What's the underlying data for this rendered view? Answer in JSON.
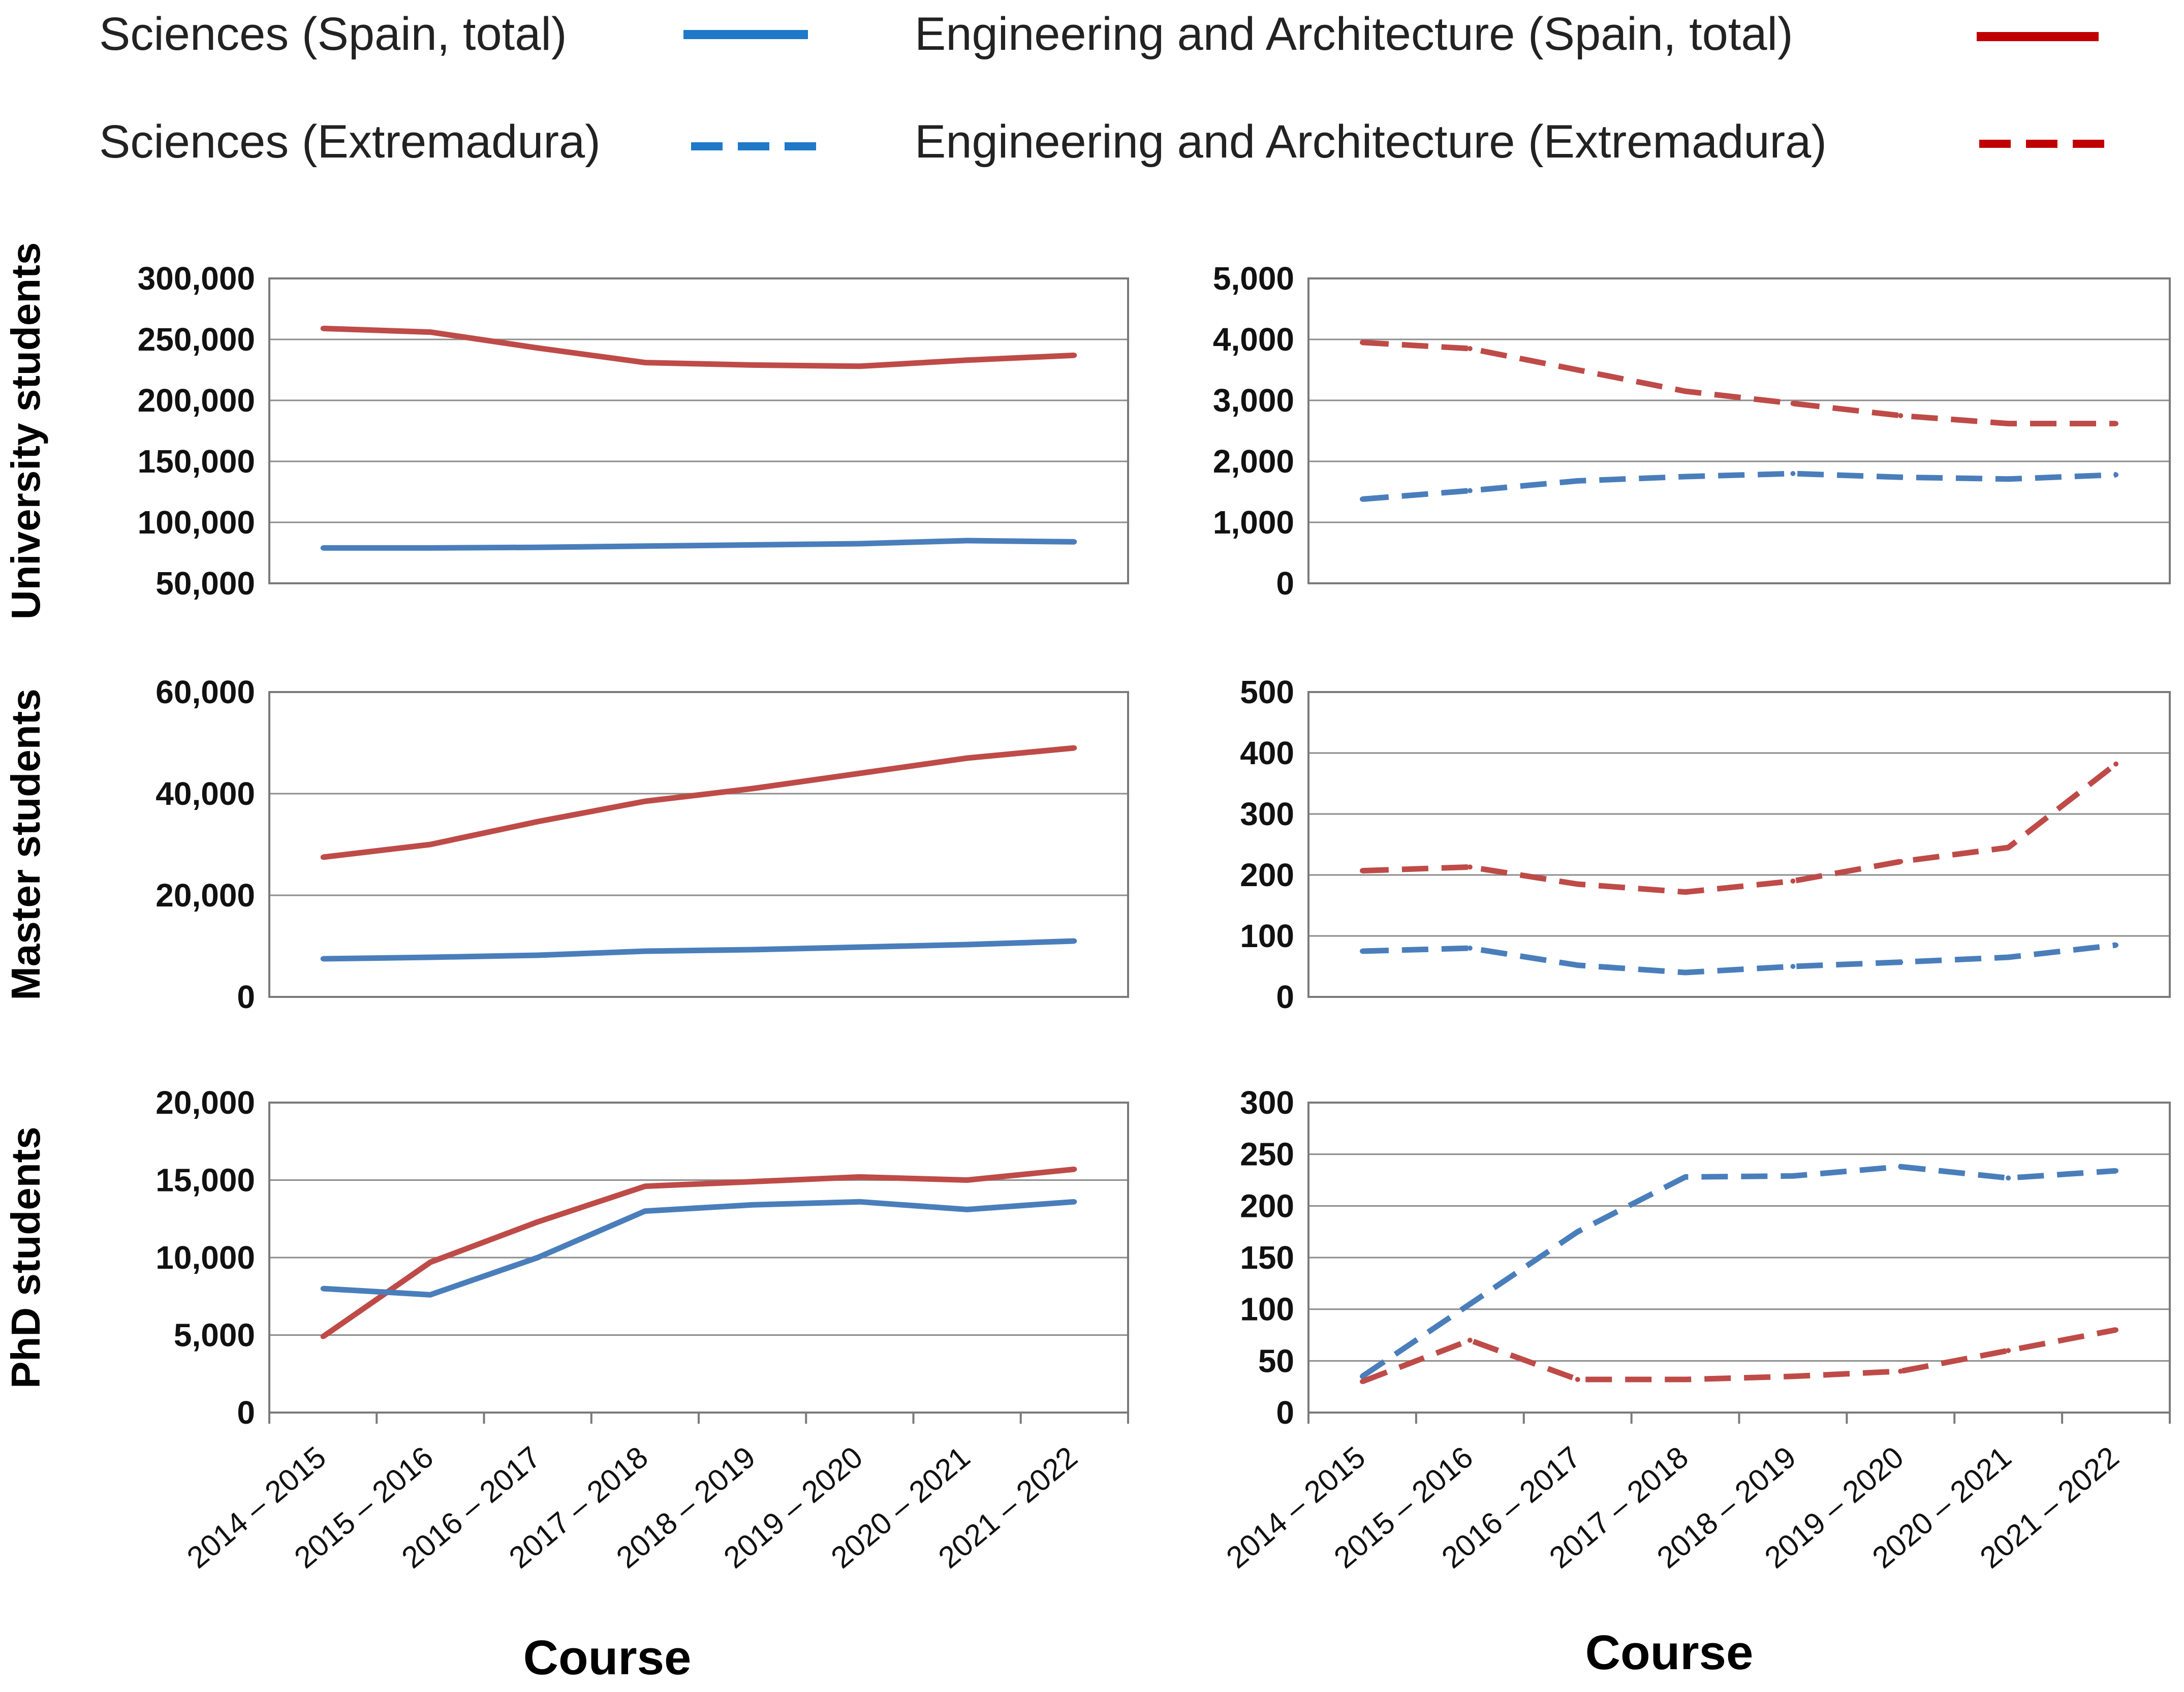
{
  "colors": {
    "sciences": "#4a7ebb",
    "engineering": "#be4b48",
    "legend_sciences": "#1f78c8",
    "legend_engineering": "#c00000"
  },
  "legend": [
    {
      "label": "Sciences (Spain, total)",
      "style": "solid",
      "color_key": "sciences"
    },
    {
      "label": "Engineering and Architecture (Spain, total)",
      "style": "solid",
      "color_key": "engineering"
    },
    {
      "label": "Sciences (Extremadura)",
      "style": "dashed",
      "color_key": "sciences"
    },
    {
      "label": "Engineering and Architecture (Extremadura)",
      "style": "dashed",
      "color_key": "engineering"
    }
  ],
  "x_axis_title": "Course",
  "chart_data": [
    {
      "type": "line",
      "row": 0,
      "col": 0,
      "ylabel": "University students",
      "categories": [
        "2014 – 2015",
        "2015 – 2016",
        "2016 – 2017",
        "2017 – 2018",
        "2018 – 2019",
        "2019 – 2020",
        "2020 – 2021",
        "2021 – 2022"
      ],
      "ylim": [
        50000,
        300000
      ],
      "yticks": [
        50000,
        100000,
        150000,
        200000,
        250000,
        300000
      ],
      "ytick_labels": [
        "50,000",
        "100,000",
        "150,000",
        "200,000",
        "250,000",
        "300,000"
      ],
      "series": [
        {
          "name": "Engineering and Architecture (Spain, total)",
          "style": "solid",
          "color_key": "engineering",
          "values": [
            259000,
            256000,
            243000,
            231000,
            229000,
            228000,
            233000,
            237000
          ]
        },
        {
          "name": "Sciences (Spain, total)",
          "style": "solid",
          "color_key": "sciences",
          "values": [
            79000,
            79000,
            79500,
            80500,
            81500,
            82500,
            85000,
            84000
          ]
        }
      ]
    },
    {
      "type": "line",
      "row": 0,
      "col": 1,
      "ylabel": "",
      "categories": [
        "2014 – 2015",
        "2015 – 2016",
        "2016 – 2017",
        "2017 – 2018",
        "2018 – 2019",
        "2019 – 2020",
        "2020 – 2021",
        "2021 – 2022"
      ],
      "ylim": [
        0,
        5000
      ],
      "yticks": [
        0,
        1000,
        2000,
        3000,
        4000,
        5000
      ],
      "ytick_labels": [
        "0",
        "1,000",
        "2,000",
        "3,000",
        "4,000",
        "5,000"
      ],
      "series": [
        {
          "name": "Engineering and Architecture (Extremadura)",
          "style": "dashed",
          "color_key": "engineering",
          "values": [
            3950,
            3850,
            3500,
            3150,
            2950,
            2750,
            2620,
            2620
          ]
        },
        {
          "name": "Sciences (Extremadura)",
          "style": "dashed",
          "color_key": "sciences",
          "values": [
            1380,
            1520,
            1680,
            1750,
            1800,
            1740,
            1710,
            1780
          ]
        }
      ]
    },
    {
      "type": "line",
      "row": 1,
      "col": 0,
      "ylabel": "Master students",
      "categories": [
        "2014 – 2015",
        "2015 – 2016",
        "2016 – 2017",
        "2017 – 2018",
        "2018 – 2019",
        "2019 – 2020",
        "2020 – 2021",
        "2021 – 2022"
      ],
      "ylim": [
        0,
        60000
      ],
      "yticks": [
        0,
        20000,
        40000,
        60000
      ],
      "ytick_labels": [
        "0",
        "20,000",
        "40,000",
        "60,000"
      ],
      "series": [
        {
          "name": "Engineering and Architecture (Spain, total)",
          "style": "solid",
          "color_key": "engineering",
          "values": [
            27500,
            30000,
            34500,
            38500,
            41000,
            44000,
            47000,
            49000
          ]
        },
        {
          "name": "Sciences (Spain, total)",
          "style": "solid",
          "color_key": "sciences",
          "values": [
            7500,
            7800,
            8200,
            9000,
            9300,
            9800,
            10300,
            11000
          ]
        }
      ]
    },
    {
      "type": "line",
      "row": 1,
      "col": 1,
      "ylabel": "",
      "categories": [
        "2014 – 2015",
        "2015 – 2016",
        "2016 – 2017",
        "2017 – 2018",
        "2018 – 2019",
        "2019 – 2020",
        "2020 – 2021",
        "2021 – 2022"
      ],
      "ylim": [
        0,
        500
      ],
      "yticks": [
        0,
        100,
        200,
        300,
        400,
        500
      ],
      "ytick_labels": [
        "0",
        "100",
        "200",
        "300",
        "400",
        "500"
      ],
      "series": [
        {
          "name": "Engineering and Architecture (Extremadura)",
          "style": "dashed",
          "color_key": "engineering",
          "values": [
            207,
            213,
            185,
            172,
            190,
            222,
            245,
            382
          ]
        },
        {
          "name": "Sciences (Extremadura)",
          "style": "dashed",
          "color_key": "sciences",
          "values": [
            75,
            80,
            52,
            40,
            50,
            57,
            65,
            85
          ]
        }
      ]
    },
    {
      "type": "line",
      "row": 2,
      "col": 0,
      "ylabel": "PhD students",
      "categories": [
        "2014 – 2015",
        "2015 – 2016",
        "2016 – 2017",
        "2017 – 2018",
        "2018 – 2019",
        "2019 – 2020",
        "2020 – 2021",
        "2021 – 2022"
      ],
      "ylim": [
        0,
        20000
      ],
      "yticks": [
        0,
        5000,
        10000,
        15000,
        20000
      ],
      "ytick_labels": [
        "0",
        "5,000",
        "10,000",
        "15,000",
        "20,000"
      ],
      "series": [
        {
          "name": "Engineering and Architecture (Spain, total)",
          "style": "solid",
          "color_key": "engineering",
          "values": [
            4900,
            9700,
            12300,
            14600,
            14900,
            15200,
            15000,
            15700
          ]
        },
        {
          "name": "Sciences (Spain, total)",
          "style": "solid",
          "color_key": "sciences",
          "values": [
            8000,
            7600,
            10000,
            13000,
            13400,
            13600,
            13100,
            13600
          ]
        }
      ]
    },
    {
      "type": "line",
      "row": 2,
      "col": 1,
      "ylabel": "",
      "categories": [
        "2014 – 2015",
        "2015 – 2016",
        "2016 – 2017",
        "2017 – 2018",
        "2018 – 2019",
        "2019 – 2020",
        "2020 – 2021",
        "2021 – 2022"
      ],
      "ylim": [
        0,
        300
      ],
      "yticks": [
        0,
        50,
        100,
        150,
        200,
        250,
        300
      ],
      "ytick_labels": [
        "0",
        "50",
        "100",
        "150",
        "200",
        "250",
        "300"
      ],
      "series": [
        {
          "name": "Sciences (Extremadura)",
          "style": "dashed",
          "color_key": "sciences",
          "values": [
            35,
            105,
            175,
            228,
            229,
            238,
            227,
            234
          ]
        },
        {
          "name": "Engineering and Architecture (Extremadura)",
          "style": "dashed",
          "color_key": "engineering",
          "values": [
            30,
            70,
            32,
            32,
            35,
            40,
            60,
            80
          ]
        }
      ]
    }
  ]
}
